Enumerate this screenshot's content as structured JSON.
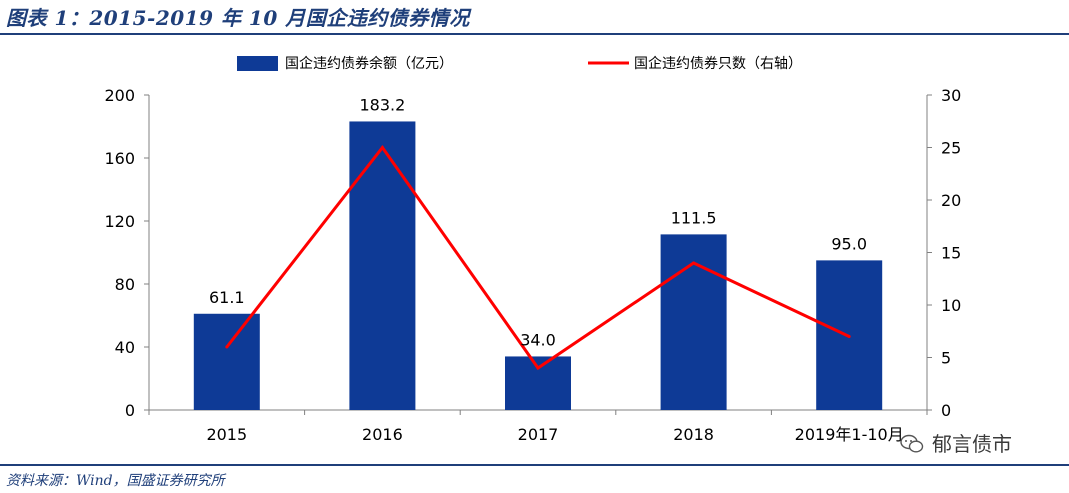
{
  "title": "图表 1：2015-2019 年 10 月国企违约债券情况",
  "source": "资料来源：Wind，国盛证券研究所",
  "watermark": "郁言债市",
  "colors": {
    "bar": "#0E3A96",
    "line": "#FF0000",
    "axis": "#808080",
    "title": "#1F3F7A"
  },
  "chart_data": {
    "type": "bar",
    "categories": [
      "2015",
      "2016",
      "2017",
      "2018",
      "2019年1-10月"
    ],
    "series": [
      {
        "name": "国企违约债券余额（亿元）",
        "type": "bar",
        "axis": "left",
        "values": [
          61.1,
          183.2,
          34.0,
          111.5,
          95.0
        ],
        "labels": [
          "61.1",
          "183.2",
          "34.0",
          "111.5",
          "95.0"
        ]
      },
      {
        "name": "国企违约债券只数（右轴）",
        "type": "line",
        "axis": "right",
        "values": [
          6,
          25,
          4,
          14,
          7
        ]
      }
    ],
    "ylim": [
      0,
      200
    ],
    "yticks": [
      "0",
      "40",
      "80",
      "120",
      "160",
      "200"
    ],
    "y2lim": [
      0,
      30
    ],
    "y2ticks": [
      "0",
      "5",
      "10",
      "15",
      "20",
      "25",
      "30"
    ],
    "legend": "top"
  }
}
